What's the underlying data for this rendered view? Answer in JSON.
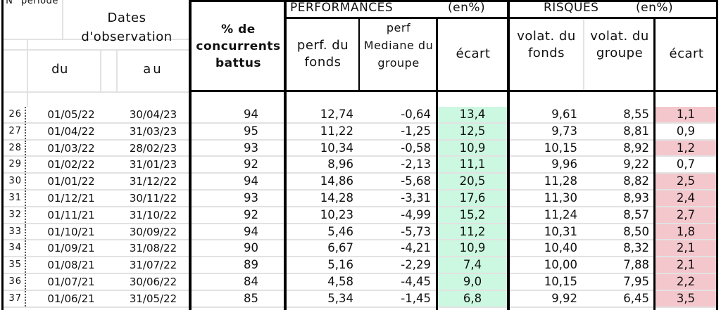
{
  "header": {
    "num_periode": "N° période",
    "dates": "Dates d'observation",
    "du": "du",
    "au": "au",
    "pct_concurrents": "% de concurrents battus",
    "performances": "PERFORMANCES",
    "performances_unit": "(en%)",
    "risques": "RISQUES",
    "risques_unit": "(en%)",
    "perf_fonds": "perf. du fonds",
    "perf_mediane": "perf Mediane du groupe",
    "ecart_perf": "écart",
    "volat_fonds": "volat. du fonds",
    "volat_groupe": "volat. du groupe",
    "ecart_risque": "écart"
  },
  "colors": {
    "ecart_perf_bg": "#ccf7e0",
    "ecart_risque_highlight": "#f4c7cc"
  },
  "rows": [
    {
      "num": "26",
      "du": "01/05/22",
      "au": "30/04/23",
      "pct": "94",
      "perf_fonds": "12,74",
      "perf_mediane": "-0,64",
      "ecart_perf": "13,4",
      "volat_fonds": "9,61",
      "volat_groupe": "8,55",
      "ecart_risque": "1,1",
      "highlight": true
    },
    {
      "num": "27",
      "du": "01/04/22",
      "au": "31/03/23",
      "pct": "95",
      "perf_fonds": "11,22",
      "perf_mediane": "-1,25",
      "ecart_perf": "12,5",
      "volat_fonds": "9,73",
      "volat_groupe": "8,81",
      "ecart_risque": "0,9",
      "highlight": false
    },
    {
      "num": "28",
      "du": "01/03/22",
      "au": "28/02/23",
      "pct": "93",
      "perf_fonds": "10,34",
      "perf_mediane": "-0,58",
      "ecart_perf": "10,9",
      "volat_fonds": "10,15",
      "volat_groupe": "8,92",
      "ecart_risque": "1,2",
      "highlight": true
    },
    {
      "num": "29",
      "du": "01/02/22",
      "au": "31/01/23",
      "pct": "92",
      "perf_fonds": "8,96",
      "perf_mediane": "-2,13",
      "ecart_perf": "11,1",
      "volat_fonds": "9,96",
      "volat_groupe": "9,22",
      "ecart_risque": "0,7",
      "highlight": false
    },
    {
      "num": "30",
      "du": "01/01/22",
      "au": "31/12/22",
      "pct": "94",
      "perf_fonds": "14,86",
      "perf_mediane": "-5,68",
      "ecart_perf": "20,5",
      "volat_fonds": "11,28",
      "volat_groupe": "8,82",
      "ecart_risque": "2,5",
      "highlight": true
    },
    {
      "num": "31",
      "du": "01/12/21",
      "au": "30/11/22",
      "pct": "93",
      "perf_fonds": "14,28",
      "perf_mediane": "-3,31",
      "ecart_perf": "17,6",
      "volat_fonds": "11,30",
      "volat_groupe": "8,93",
      "ecart_risque": "2,4",
      "highlight": true
    },
    {
      "num": "32",
      "du": "01/11/21",
      "au": "31/10/22",
      "pct": "92",
      "perf_fonds": "10,23",
      "perf_mediane": "-4,99",
      "ecart_perf": "15,2",
      "volat_fonds": "11,24",
      "volat_groupe": "8,57",
      "ecart_risque": "2,7",
      "highlight": true
    },
    {
      "num": "33",
      "du": "01/10/21",
      "au": "30/09/22",
      "pct": "94",
      "perf_fonds": "5,46",
      "perf_mediane": "-5,73",
      "ecart_perf": "11,2",
      "volat_fonds": "10,31",
      "volat_groupe": "8,50",
      "ecart_risque": "1,8",
      "highlight": true
    },
    {
      "num": "34",
      "du": "01/09/21",
      "au": "31/08/22",
      "pct": "90",
      "perf_fonds": "6,67",
      "perf_mediane": "-4,21",
      "ecart_perf": "10,9",
      "volat_fonds": "10,40",
      "volat_groupe": "8,32",
      "ecart_risque": "2,1",
      "highlight": true
    },
    {
      "num": "35",
      "du": "01/08/21",
      "au": "31/07/22",
      "pct": "89",
      "perf_fonds": "5,16",
      "perf_mediane": "-2,29",
      "ecart_perf": "7,4",
      "volat_fonds": "10,00",
      "volat_groupe": "7,88",
      "ecart_risque": "2,1",
      "highlight": true
    },
    {
      "num": "36",
      "du": "01/07/21",
      "au": "30/06/22",
      "pct": "84",
      "perf_fonds": "4,58",
      "perf_mediane": "-4,45",
      "ecart_perf": "9,0",
      "volat_fonds": "10,15",
      "volat_groupe": "7,95",
      "ecart_risque": "2,2",
      "highlight": true
    },
    {
      "num": "37",
      "du": "01/06/21",
      "au": "31/05/22",
      "pct": "85",
      "perf_fonds": "5,34",
      "perf_mediane": "-1,45",
      "ecart_perf": "6,8",
      "volat_fonds": "9,92",
      "volat_groupe": "6,45",
      "ecart_risque": "3,5",
      "highlight": true
    }
  ]
}
